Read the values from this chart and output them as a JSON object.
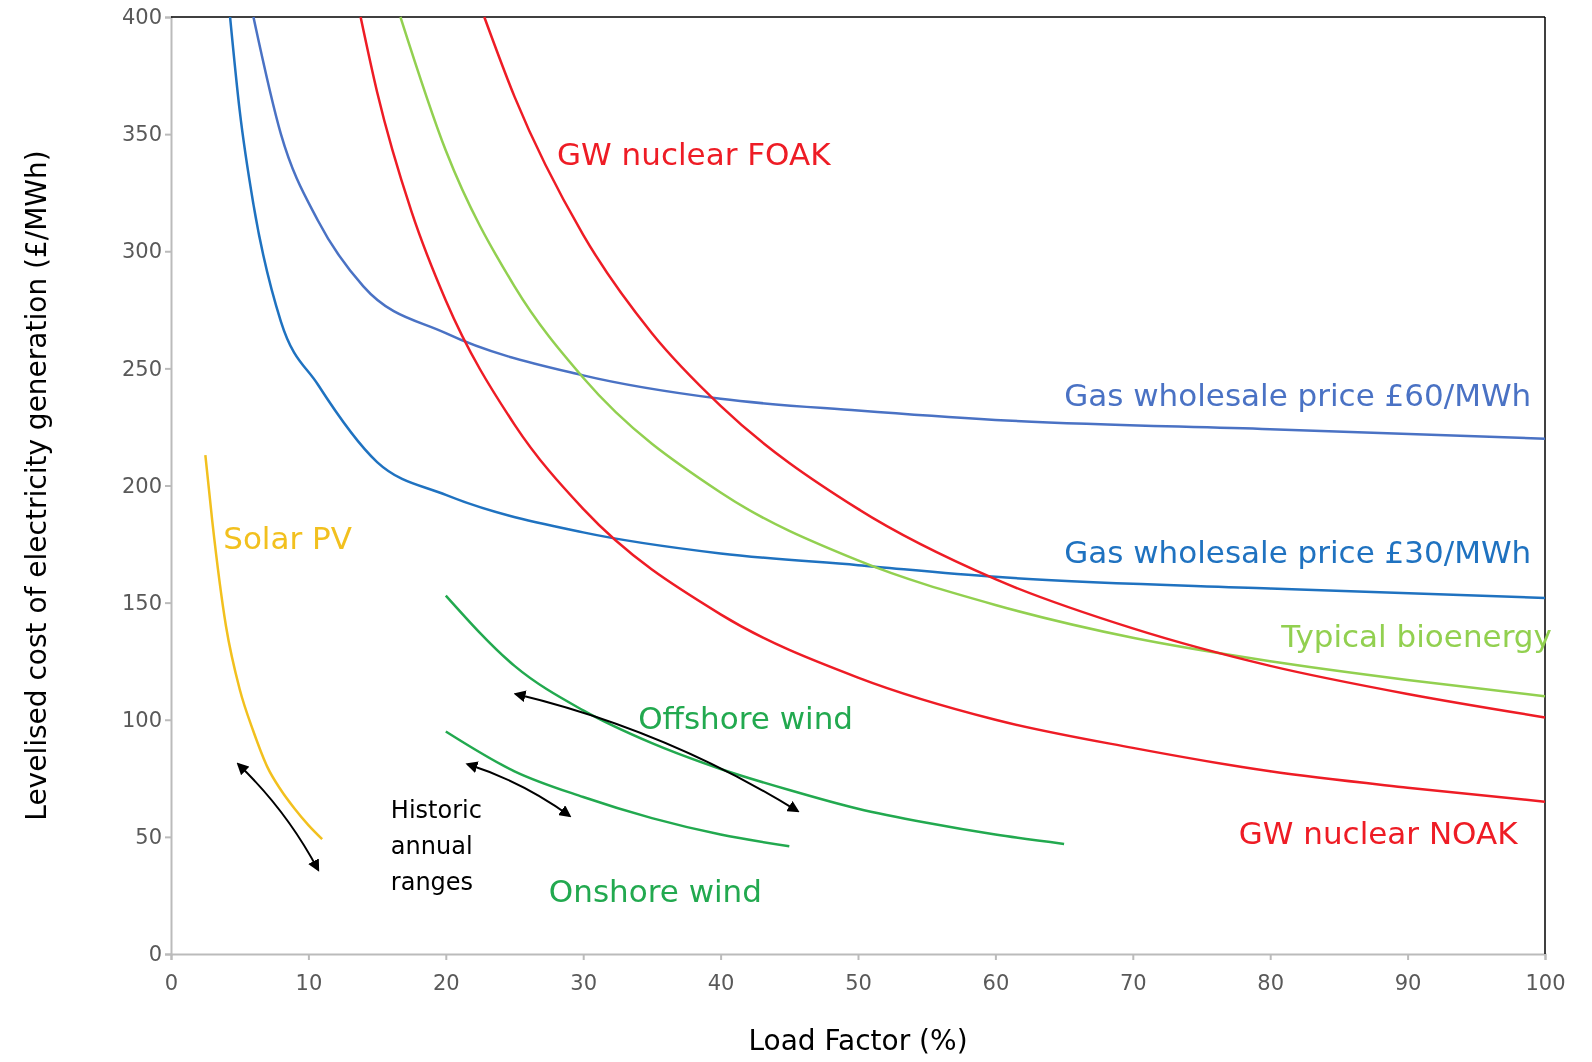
{
  "chart_data": {
    "type": "line",
    "xlabel": "Load Factor (%)",
    "ylabel": "Levelised cost of electricity generation (£/MWh)",
    "xlim": [
      0,
      100
    ],
    "ylim": [
      0,
      400
    ],
    "xticks": [
      0,
      10,
      20,
      30,
      40,
      50,
      60,
      70,
      80,
      90,
      100
    ],
    "yticks": [
      0,
      50,
      100,
      150,
      200,
      250,
      300,
      350,
      400
    ],
    "grid": false,
    "legend": false,
    "marker": "none",
    "line_style": "solid",
    "series": [
      {
        "name": "Gas wholesale price £60/MWh",
        "color": "#4a72c4",
        "x": [
          6,
          8,
          10.7,
          14,
          20,
          30,
          40,
          50,
          60,
          80,
          100
        ],
        "values": [
          400,
          350,
          313,
          285,
          265,
          247,
          237,
          232,
          228,
          224,
          220
        ]
      },
      {
        "name": "Gas wholesale price £30/MWh",
        "color": "#1f72c0",
        "x": [
          4.3,
          5,
          6,
          8,
          10.7,
          15,
          20,
          30,
          40,
          50,
          60,
          80,
          100
        ],
        "values": [
          400,
          360,
          320,
          270,
          243,
          210,
          196,
          180,
          171,
          166,
          161,
          156,
          152
        ]
      },
      {
        "name": "Typical bioenergy",
        "color": "#92d050",
        "x": [
          16.7,
          20,
          25,
          30,
          40,
          50,
          60,
          70,
          80,
          90,
          100
        ],
        "values": [
          400,
          343,
          285,
          246,
          197,
          168,
          149,
          135,
          125,
          117,
          110
        ]
      },
      {
        "name": "GW nuclear FOAK",
        "color": "#ee1c25",
        "x": [
          22.8,
          25,
          30,
          35,
          40,
          50,
          60,
          70,
          80,
          90,
          100
        ],
        "values": [
          400,
          366,
          307,
          265,
          234,
          190,
          160,
          139,
          123,
          111,
          101
        ]
      },
      {
        "name": "GW nuclear NOAK",
        "color": "#ee1c25",
        "x": [
          13.8,
          15,
          17.5,
          20,
          25,
          30,
          40,
          50,
          60,
          70,
          80,
          90,
          100
        ],
        "values": [
          400,
          368,
          317,
          279,
          226,
          190,
          145,
          118,
          100,
          88,
          78,
          71,
          65
        ]
      },
      {
        "name": "Offshore wind",
        "color": "#22a94f",
        "x": [
          20,
          25,
          30,
          35,
          40,
          45,
          50,
          55,
          60,
          65
        ],
        "values": [
          153,
          123,
          104,
          90,
          79,
          70,
          62,
          56,
          51,
          47
        ]
      },
      {
        "name": "Onshore wind",
        "color": "#22a94f",
        "x": [
          20,
          25,
          30,
          35,
          40,
          45
        ],
        "values": [
          95,
          78,
          67,
          58,
          51,
          46
        ]
      },
      {
        "name": "Solar PV",
        "color": "#f2c01e",
        "x": [
          2.5,
          3,
          4,
          5,
          6,
          7,
          8,
          9,
          10,
          11
        ],
        "values": [
          213,
          185,
          140,
          113,
          95,
          80,
          70,
          62,
          55,
          49
        ]
      }
    ],
    "annotations": [
      "Historic annual ranges"
    ]
  }
}
